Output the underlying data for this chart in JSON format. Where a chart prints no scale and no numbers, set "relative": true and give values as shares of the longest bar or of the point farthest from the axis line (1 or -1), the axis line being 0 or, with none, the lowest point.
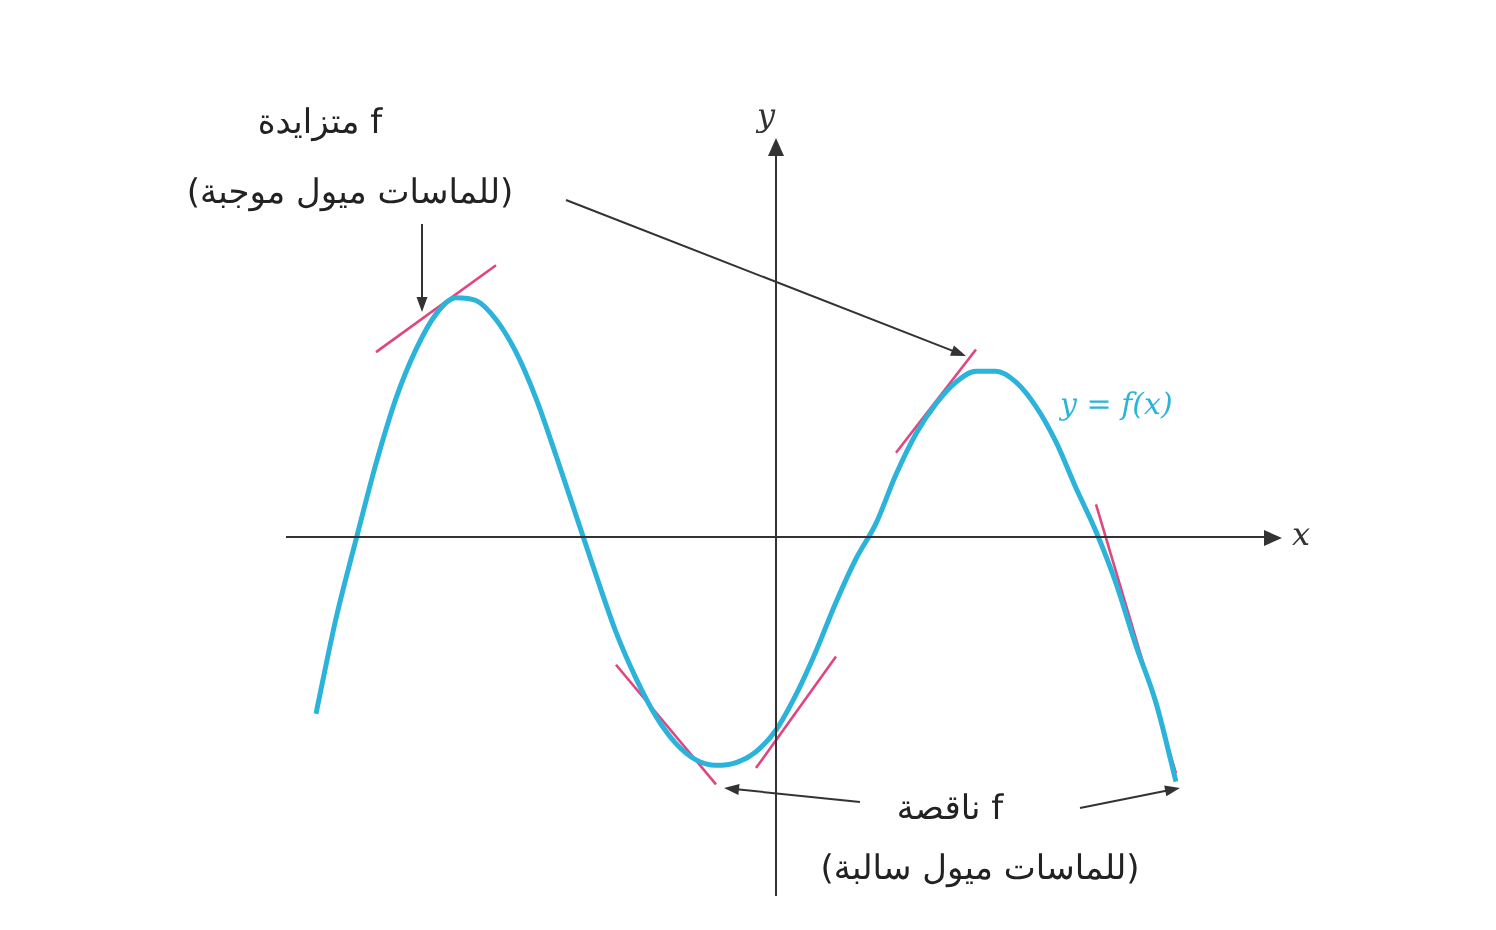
{
  "chart_data": {
    "type": "line",
    "relative": true,
    "xlabel": "x",
    "ylabel": "y",
    "marker": "none",
    "line_style": "solid",
    "legend": false,
    "categories": [
      null,
      null,
      null,
      null,
      null,
      null,
      null,
      null,
      null,
      null,
      null,
      null,
      null,
      null,
      null,
      null,
      null,
      null,
      null,
      null,
      null,
      null,
      null,
      null,
      null,
      null,
      null,
      null,
      null,
      null,
      null,
      null,
      null,
      null,
      null,
      null,
      null,
      null,
      null,
      null,
      null,
      null,
      null,
      null
    ],
    "series": [
      {
        "name": "y = f(x)",
        "color": "#2bb3d9",
        "values": [
          -0.65,
          -0.3,
          -0.01,
          0.27,
          0.51,
          0.69,
          0.82,
          0.88,
          0.87,
          0.8,
          0.68,
          0.51,
          0.3,
          0.08,
          -0.14,
          -0.35,
          -0.52,
          -0.66,
          -0.76,
          -0.82,
          -0.84,
          -0.83,
          -0.79,
          -0.71,
          -0.58,
          -0.42,
          -0.24,
          -0.08,
          0.05,
          0.23,
          0.38,
          0.49,
          0.57,
          0.61,
          0.61,
          0.57,
          0.48,
          0.35,
          0.18,
          0.02,
          -0.17,
          -0.4,
          -0.61,
          -0.9
        ]
      },
      {
        "color": "#e0457f",
        "values": [
          null,
          null,
          null,
          0.68,
          null,
          null,
          null,
          null,
          null,
          1.0,
          null,
          null,
          null,
          null,
          null,
          null,
          null,
          null,
          null,
          null,
          null,
          null,
          null,
          null,
          null,
          null,
          null,
          null,
          null,
          null,
          null,
          null,
          null,
          null,
          null,
          null,
          null,
          null,
          null,
          null,
          null,
          null,
          null,
          null
        ]
      },
      {
        "color": "#e0457f",
        "values": [
          null,
          null,
          null,
          null,
          null,
          null,
          null,
          null,
          null,
          null,
          null,
          null,
          null,
          null,
          null,
          null,
          null,
          null,
          null,
          null,
          null,
          null,
          null,
          null,
          null,
          null,
          null,
          null,
          null,
          0.31,
          null,
          null,
          null,
          0.69,
          null,
          null,
          null,
          null,
          null,
          null,
          null,
          null,
          null,
          null
        ]
      },
      {
        "color": "#e0457f",
        "values": [
          null,
          null,
          null,
          null,
          null,
          null,
          null,
          null,
          null,
          null,
          null,
          null,
          null,
          null,
          null,
          -0.47,
          null,
          null,
          null,
          null,
          -0.91,
          null,
          null,
          null,
          null,
          null,
          null,
          null,
          null,
          null,
          null,
          null,
          null,
          null,
          null,
          null,
          null,
          null,
          null,
          null,
          null,
          null,
          null,
          null
        ]
      },
      {
        "color": "#e0457f",
        "values": [
          null,
          null,
          null,
          null,
          null,
          null,
          null,
          null,
          null,
          null,
          null,
          null,
          null,
          null,
          null,
          null,
          null,
          null,
          null,
          null,
          null,
          null,
          -0.85,
          null,
          null,
          null,
          -0.44,
          null,
          null,
          null,
          null,
          null,
          null,
          null,
          null,
          null,
          null,
          null,
          null,
          null,
          null,
          null,
          null,
          null
        ]
      },
      {
        "color": "#e0457f",
        "values": [
          null,
          null,
          null,
          null,
          null,
          null,
          null,
          null,
          null,
          null,
          null,
          null,
          null,
          null,
          null,
          null,
          null,
          null,
          null,
          null,
          null,
          null,
          null,
          null,
          null,
          null,
          null,
          null,
          null,
          null,
          null,
          null,
          null,
          null,
          null,
          null,
          null,
          null,
          null,
          0.12,
          null,
          null,
          null,
          -0.87
        ]
      }
    ],
    "annotations": [
      "f متزايدة",
      "(للماسات ميول موجبة)",
      "f ناقصة",
      "(للماسات ميول سالبة)"
    ]
  }
}
